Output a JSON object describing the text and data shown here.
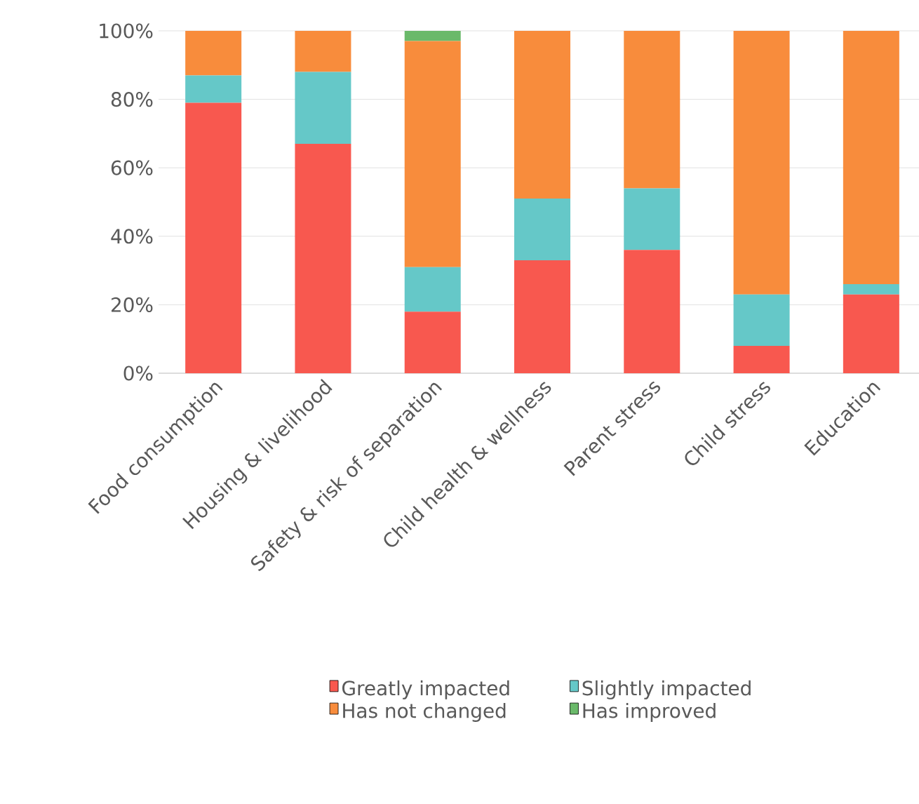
{
  "chart_data": {
    "type": "bar",
    "stacked": true,
    "categories": [
      "Food consumption",
      "Housing & livelihood",
      "Safety & risk of separation",
      "Child health & wellness",
      "Parent stress",
      "Child stress",
      "Education"
    ],
    "series": [
      {
        "name": "Greatly impacted",
        "color": "#f8584f",
        "values": [
          79,
          67,
          18,
          33,
          36,
          8,
          23
        ]
      },
      {
        "name": "Slightly impacted",
        "color": "#65c8c8",
        "values": [
          8,
          21,
          13,
          18,
          18,
          15,
          3
        ]
      },
      {
        "name": "Has not changed",
        "color": "#f88c3c",
        "values": [
          13,
          12,
          66,
          49,
          46,
          77,
          74
        ]
      },
      {
        "name": "Has improved",
        "color": "#6ab96a",
        "values": [
          0,
          0,
          3,
          0,
          0,
          0,
          0
        ]
      }
    ],
    "ylim": [
      0,
      100
    ],
    "yticks": [
      {
        "value": 0,
        "label": "0%"
      },
      {
        "value": 20,
        "label": "20%"
      },
      {
        "value": 40,
        "label": "40%"
      },
      {
        "value": 60,
        "label": "60%"
      },
      {
        "value": 80,
        "label": "80%"
      },
      {
        "value": 100,
        "label": "100%"
      }
    ],
    "grid": "y",
    "legend": "bottom"
  }
}
